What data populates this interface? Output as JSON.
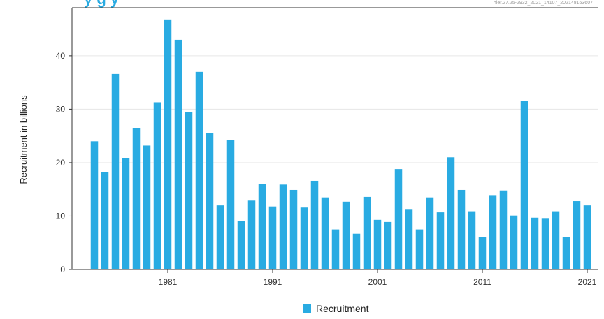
{
  "colors": {
    "bar": "#29abe2",
    "grid": "#e6e6e6",
    "axis": "#333333",
    "title_fragment": "#29abe2"
  },
  "header": {
    "title_fragment": "y g   y",
    "reference": "hier.27.25-2932_2021_14107_202148163607"
  },
  "chart_data": {
    "type": "bar",
    "ylabel": "Recruitment in billions",
    "xlabel": "",
    "ylim": [
      0,
      49
    ],
    "yticks": [
      0,
      10,
      20,
      30,
      40
    ],
    "xticks": [
      1981,
      1991,
      2001,
      2011,
      2021
    ],
    "legend": {
      "position": "bottom-center",
      "label": "Recruitment"
    },
    "grid": true,
    "series": [
      {
        "name": "Recruitment",
        "x": [
          1974,
          1975,
          1976,
          1977,
          1978,
          1979,
          1980,
          1981,
          1982,
          1983,
          1984,
          1985,
          1986,
          1987,
          1988,
          1989,
          1990,
          1991,
          1992,
          1993,
          1994,
          1995,
          1996,
          1997,
          1998,
          1999,
          2000,
          2001,
          2002,
          2003,
          2004,
          2005,
          2006,
          2007,
          2008,
          2009,
          2010,
          2011,
          2012,
          2013,
          2014,
          2015,
          2016,
          2017,
          2018,
          2019,
          2020,
          2021
        ],
        "values": [
          24,
          18.2,
          36.6,
          20.8,
          26.5,
          23.2,
          31.3,
          46.8,
          43,
          29.4,
          37,
          25.5,
          12,
          24.2,
          9.1,
          12.9,
          16,
          11.8,
          15.9,
          14.9,
          11.6,
          16.6,
          13.5,
          7.5,
          12.7,
          6.7,
          13.6,
          9.3,
          8.9,
          18.8,
          11.2,
          7.5,
          13.5,
          10.7,
          21,
          14.9,
          10.9,
          6.1,
          13.8,
          14.8,
          10.1,
          31.5,
          9.7,
          9.5,
          10.9,
          6.1,
          12.8,
          12
        ]
      }
    ]
  }
}
